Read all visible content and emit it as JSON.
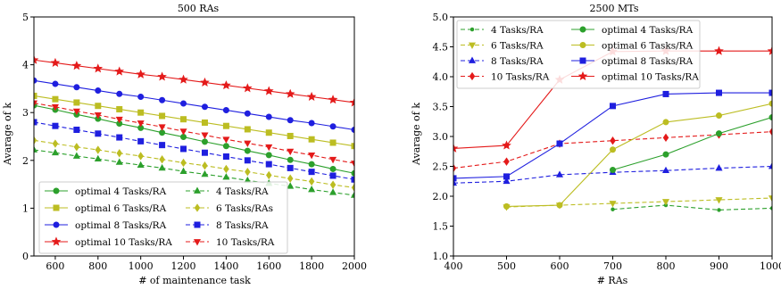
{
  "chart_data": [
    {
      "type": "line",
      "title": "500 RAs",
      "xlabel": "# of maintenance task",
      "ylabel": "Avarage of k",
      "xlim": [
        500,
        2000
      ],
      "ylim": [
        0,
        5
      ],
      "xticks": [
        600,
        800,
        1000,
        1200,
        1400,
        1600,
        1800,
        2000
      ],
      "yticks": [
        0,
        1,
        2,
        3,
        4,
        5
      ],
      "grid": false,
      "legend_position": "lower-left",
      "legend_columns": 2,
      "x": [
        500,
        600,
        700,
        800,
        900,
        1000,
        1100,
        1200,
        1300,
        1400,
        1500,
        1600,
        1700,
        1800,
        1900,
        2000
      ],
      "series": [
        {
          "name": "optimal 4 Tasks/RA",
          "color": "#2ca02c",
          "style": "solid",
          "marker": "circle",
          "values": [
            3.15,
            3.06,
            2.96,
            2.87,
            2.77,
            2.68,
            2.58,
            2.49,
            2.39,
            2.3,
            2.2,
            2.11,
            2.01,
            1.92,
            1.82,
            1.73
          ]
        },
        {
          "name": "optimal 6 Tasks/RA",
          "color": "#bcbd22",
          "style": "solid",
          "marker": "square",
          "values": [
            3.35,
            3.28,
            3.21,
            3.14,
            3.07,
            3.0,
            2.93,
            2.86,
            2.79,
            2.72,
            2.65,
            2.58,
            2.51,
            2.44,
            2.37,
            2.3
          ]
        },
        {
          "name": "optimal 8 Tasks/RA",
          "color": "#1f1fdf",
          "style": "solid",
          "marker": "circle",
          "values": [
            3.67,
            3.6,
            3.53,
            3.46,
            3.39,
            3.33,
            3.26,
            3.19,
            3.12,
            3.05,
            2.98,
            2.91,
            2.84,
            2.78,
            2.71,
            2.64
          ]
        },
        {
          "name": "optimal 10 Tasks/RA",
          "color": "#e41a1a",
          "style": "solid",
          "marker": "star",
          "values": [
            4.1,
            4.04,
            3.98,
            3.92,
            3.86,
            3.8,
            3.75,
            3.69,
            3.63,
            3.57,
            3.51,
            3.45,
            3.39,
            3.33,
            3.27,
            3.21
          ]
        },
        {
          "name": "4 Tasks/RA",
          "color": "#2ca02c",
          "style": "dashed",
          "marker": "triangle-up",
          "values": [
            2.22,
            2.16,
            2.09,
            2.03,
            1.96,
            1.9,
            1.84,
            1.77,
            1.71,
            1.65,
            1.58,
            1.52,
            1.46,
            1.39,
            1.33,
            1.27
          ]
        },
        {
          "name": "6 Tasks/RAs",
          "color": "#bcbd22",
          "style": "dashed",
          "marker": "diamond",
          "values": [
            2.42,
            2.35,
            2.28,
            2.22,
            2.15,
            2.09,
            2.02,
            1.95,
            1.89,
            1.82,
            1.76,
            1.69,
            1.62,
            1.56,
            1.49,
            1.43
          ]
        },
        {
          "name": "8 Tasks/RA",
          "color": "#1f1fdf",
          "style": "dashed",
          "marker": "square",
          "values": [
            2.8,
            2.72,
            2.64,
            2.56,
            2.48,
            2.4,
            2.32,
            2.24,
            2.16,
            2.08,
            2.0,
            1.92,
            1.84,
            1.76,
            1.68,
            1.6
          ]
        },
        {
          "name": "10 Tasks/RA",
          "color": "#e41a1a",
          "style": "dashed",
          "marker": "triangle-down",
          "values": [
            3.2,
            3.12,
            3.03,
            2.95,
            2.86,
            2.78,
            2.7,
            2.61,
            2.53,
            2.44,
            2.36,
            2.28,
            2.19,
            2.11,
            2.02,
            1.94
          ]
        }
      ]
    },
    {
      "type": "line",
      "title": "2500 MTs",
      "xlabel": "# RAs",
      "ylabel": "Avarage of k",
      "xlim": [
        400,
        1000
      ],
      "ylim": [
        1.0,
        5.0
      ],
      "xticks": [
        400,
        500,
        600,
        700,
        800,
        900,
        1000
      ],
      "yticks": [
        1.0,
        1.5,
        2.0,
        2.5,
        3.0,
        3.5,
        4.0,
        4.5,
        5.0
      ],
      "grid": false,
      "legend_position": "top-left",
      "legend_columns": 2,
      "x": [
        400,
        500,
        600,
        700,
        800,
        900,
        1000
      ],
      "series": [
        {
          "name": "4 Tasks/RA",
          "color": "#2ca02c",
          "style": "dashed",
          "marker": "circle-small",
          "values": [
            null,
            null,
            null,
            1.78,
            1.85,
            1.77,
            1.8
          ]
        },
        {
          "name": "6 Tasks/RA",
          "color": "#bcbd22",
          "style": "dashed",
          "marker": "triangle-down",
          "values": [
            null,
            1.82,
            1.85,
            1.88,
            1.91,
            1.94,
            1.97
          ]
        },
        {
          "name": "8 Tasks/RA",
          "color": "#1f1fdf",
          "style": "dashed",
          "marker": "triangle-up",
          "values": [
            2.22,
            2.25,
            2.36,
            2.4,
            2.43,
            2.47,
            2.5
          ]
        },
        {
          "name": "10 Tasks/RA",
          "color": "#e41a1a",
          "style": "dashed",
          "marker": "diamond",
          "values": [
            2.47,
            2.58,
            2.88,
            2.93,
            2.98,
            3.03,
            3.08
          ]
        },
        {
          "name": "optimal 4 Tasks/RA",
          "color": "#2ca02c",
          "style": "solid",
          "marker": "circle",
          "values": [
            null,
            null,
            null,
            2.44,
            2.7,
            3.05,
            3.32
          ]
        },
        {
          "name": "optimal 6 Tasks/RA",
          "color": "#bcbd22",
          "style": "solid",
          "marker": "circle",
          "values": [
            null,
            1.83,
            1.85,
            2.78,
            3.24,
            3.35,
            3.55
          ]
        },
        {
          "name": "optimal 8 Tasks/RA",
          "color": "#1f1fdf",
          "style": "solid",
          "marker": "square",
          "values": [
            2.3,
            2.33,
            2.88,
            3.51,
            3.71,
            3.73,
            3.73
          ]
        },
        {
          "name": "optimal 10 Tasks/RA",
          "color": "#e41a1a",
          "style": "solid",
          "marker": "star",
          "values": [
            2.8,
            2.85,
            3.95,
            4.42,
            4.43,
            4.43,
            4.43
          ]
        }
      ]
    }
  ]
}
